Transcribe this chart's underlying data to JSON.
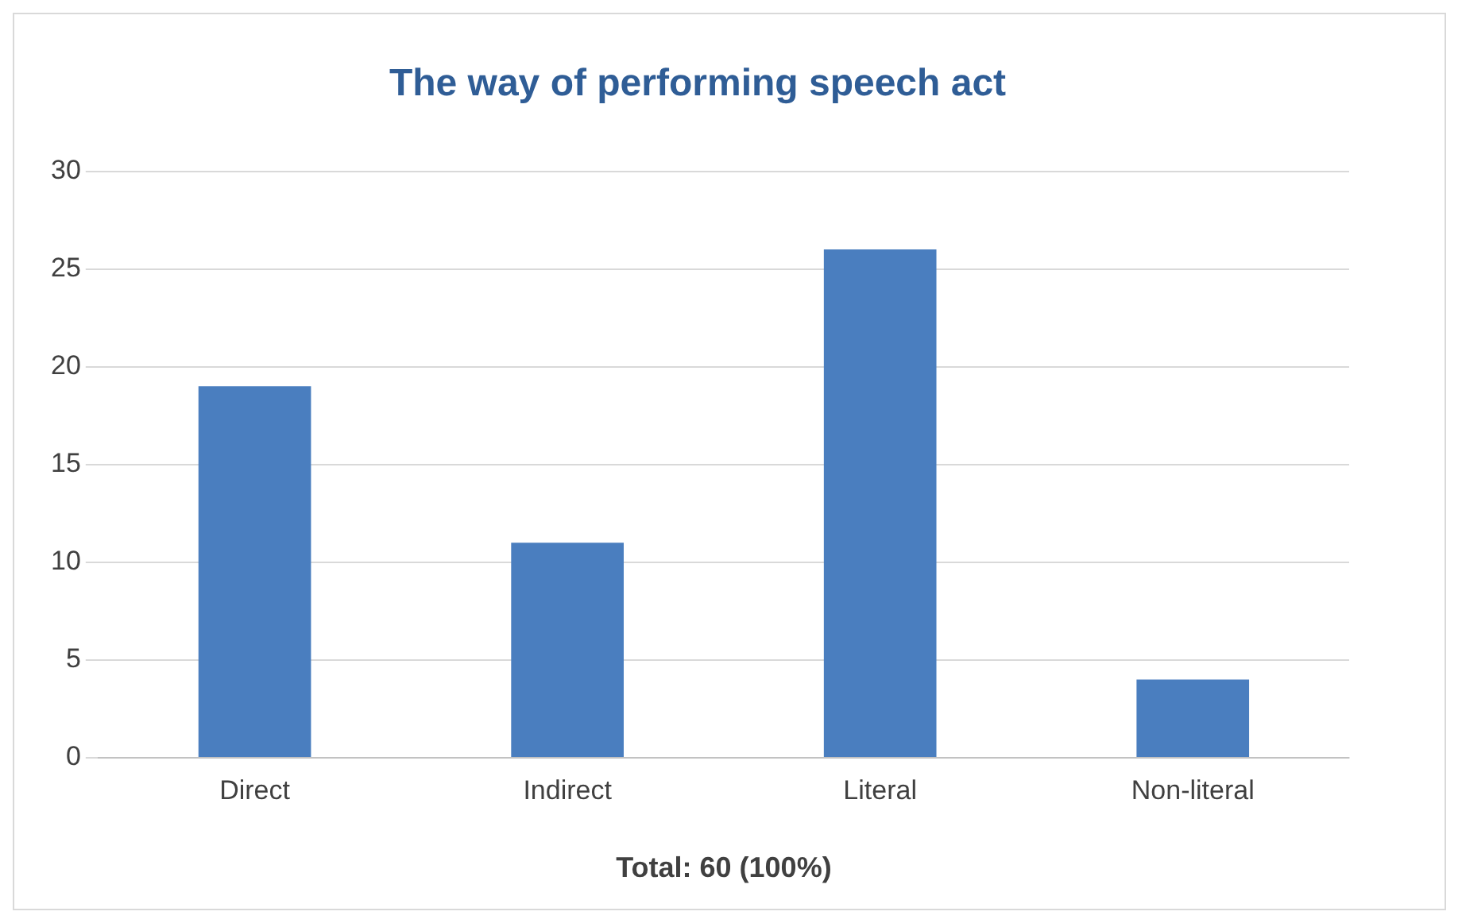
{
  "chart_data": {
    "type": "bar",
    "title": "The way of performing speech act",
    "xlabel": "Total: 60 (100%)",
    "categories": [
      "Direct",
      "Indirect",
      "Literal",
      "Non-literal"
    ],
    "values": [
      19,
      11,
      26,
      4
    ],
    "color": "#4a7ebf",
    "ylim": [
      0,
      30
    ],
    "yticks": [
      0,
      5,
      10,
      15,
      20,
      25,
      30
    ],
    "grid": "y",
    "legend": false
  }
}
